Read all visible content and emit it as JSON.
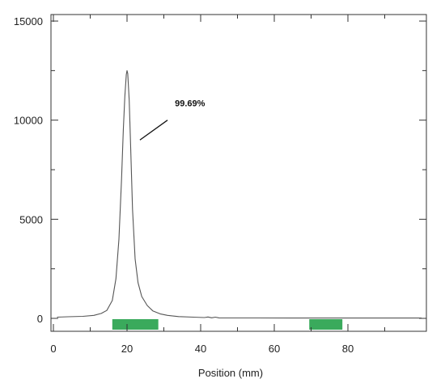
{
  "chart_data": {
    "type": "line",
    "title": "",
    "xlabel": "Position (mm)",
    "ylabel": "",
    "xlim": [
      0,
      100
    ],
    "ylim": [
      -500,
      15000
    ],
    "x_ticks": [
      0,
      20,
      40,
      60,
      80
    ],
    "x_tick_labels": [
      "0",
      "20",
      "40",
      "60",
      "80"
    ],
    "y_ticks": [
      0,
      5000,
      10000,
      15000
    ],
    "y_tick_labels": [
      "0",
      "5000",
      "10000",
      "15000"
    ],
    "grid": false,
    "legend": "none",
    "series": [
      {
        "color": "#555555",
        "x": [
          1,
          4,
          8,
          11,
          13,
          14.5,
          16,
          17,
          17.8,
          18.5,
          19,
          19.4,
          19.8,
          20,
          20.2,
          20.6,
          21,
          21.5,
          22.2,
          23,
          24,
          25.5,
          27,
          29,
          31,
          34,
          38,
          41,
          42,
          43,
          44,
          45,
          48,
          55,
          65,
          75,
          85,
          95,
          100
        ],
        "y": [
          60,
          80,
          100,
          150,
          250,
          400,
          900,
          2000,
          4000,
          7000,
          9500,
          11200,
          12300,
          12500,
          12350,
          11000,
          8500,
          5500,
          3000,
          1800,
          1100,
          650,
          380,
          230,
          150,
          90,
          60,
          40,
          70,
          30,
          60,
          25,
          20,
          20,
          15,
          15,
          15,
          15,
          15
        ]
      }
    ],
    "regions": [
      {
        "x_start": 16,
        "x_end": 28.5,
        "color": "#3aaa5c"
      },
      {
        "x_start": 69.5,
        "x_end": 78.5,
        "color": "#3aaa5c"
      }
    ],
    "annotations": [
      {
        "text": "99.69%",
        "x": 33,
        "y": 10700,
        "leader_from": [
          31,
          10000
        ],
        "leader_to": [
          23.5,
          9000
        ]
      }
    ]
  }
}
